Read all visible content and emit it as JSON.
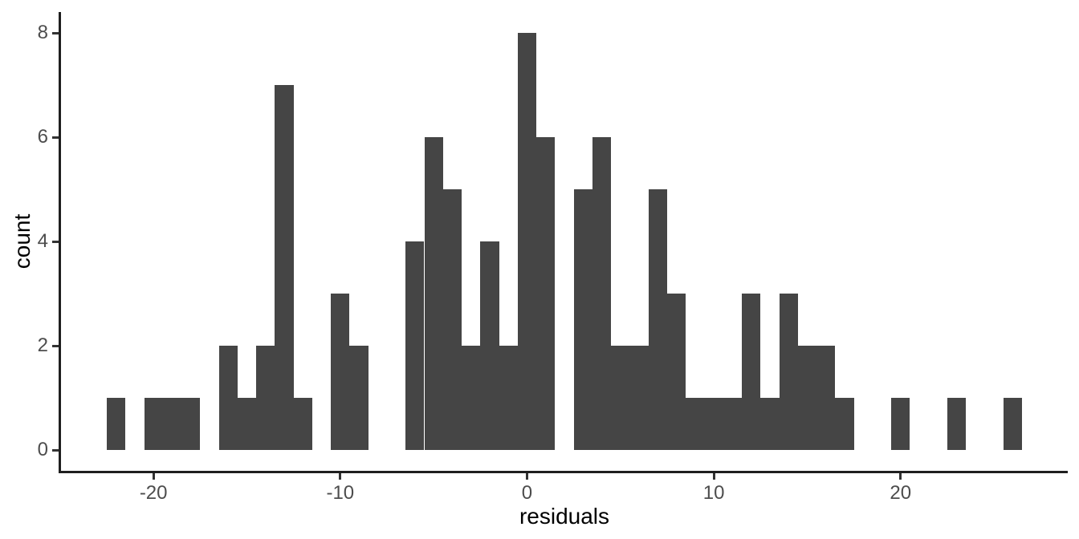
{
  "figure": {
    "background": "#ffffff"
  },
  "chart_data": {
    "type": "bar",
    "subtype": "histogram",
    "title": "",
    "xlabel": "residuals",
    "ylabel": "count",
    "bar_color": "#454545",
    "grid": "off",
    "legend": "none",
    "bin_start": -22.5,
    "bin_width": 1,
    "bin_centers": [
      -22,
      -21,
      -20,
      -19,
      -18,
      -17,
      -16,
      -15,
      -14,
      -13,
      -12,
      -11,
      -10,
      -9,
      -8,
      -7,
      -6,
      -5,
      -4,
      -3,
      -2,
      -1,
      0,
      1,
      2,
      3,
      4,
      5,
      6,
      7,
      8,
      9,
      10,
      11,
      12,
      13,
      14,
      15,
      16,
      17,
      18,
      19,
      20,
      21,
      22,
      23,
      24,
      25,
      26
    ],
    "counts": [
      1,
      0,
      1,
      1,
      1,
      0,
      2,
      1,
      2,
      7,
      1,
      0,
      3,
      2,
      0,
      0,
      4,
      6,
      5,
      2,
      4,
      2,
      8,
      6,
      0,
      5,
      6,
      2,
      2,
      5,
      3,
      1,
      1,
      1,
      3,
      1,
      3,
      2,
      2,
      1,
      0,
      0,
      1,
      0,
      0,
      1,
      0,
      0,
      1
    ],
    "x_ticks": [
      {
        "value": -20,
        "label": "-20"
      },
      {
        "value": -10,
        "label": "-10"
      },
      {
        "value": 0,
        "label": "0"
      },
      {
        "value": 10,
        "label": "10"
      },
      {
        "value": 20,
        "label": "20"
      }
    ],
    "y_ticks": [
      {
        "value": 0,
        "label": "0"
      },
      {
        "value": 2,
        "label": "2"
      },
      {
        "value": 4,
        "label": "4"
      },
      {
        "value": 6,
        "label": "6"
      },
      {
        "value": 8,
        "label": "8"
      }
    ],
    "xlim": [
      -24.95,
      28.95
    ],
    "ylim": [
      -0.4,
      8.4
    ]
  },
  "colors": {
    "axis_line": "#1f1f1f",
    "tick_mark": "#333333",
    "tick_label": "#4d4d4d",
    "axis_title": "#000000"
  }
}
